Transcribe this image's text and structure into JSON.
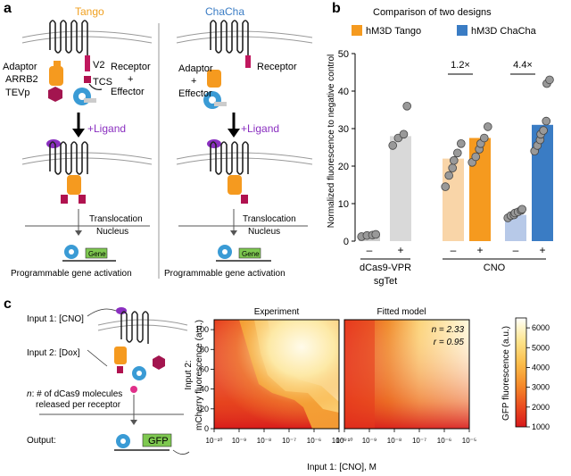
{
  "panels": {
    "a": {
      "letter": "a",
      "left": {
        "title": "Tango",
        "title_color": "#f0a020",
        "adaptor": "Adaptor",
        "arrb2": "ARRB2",
        "tevp": "TEVp",
        "v2": "V2",
        "tcs": "TCS",
        "receptor": "Receptor",
        "plus_sign": "+",
        "effector": "Effector",
        "ligand": "+Ligand",
        "translocation": "Translocation",
        "nucleus": "Nucleus",
        "gene": "Gene",
        "activation": "Programmable gene activation"
      },
      "right": {
        "title": "ChaCha",
        "title_color": "#3a7cc4",
        "adaptor": "Adaptor",
        "plus_sign": "+",
        "effector": "Effector",
        "receptor": "Receptor",
        "ligand": "+Ligand",
        "translocation": "Translocation",
        "nucleus": "Nucleus",
        "gene": "Gene",
        "activation": "Programmable gene activation"
      },
      "ligand_color": "#8a2fc0"
    },
    "b": {
      "letter": "b",
      "legend_title": "Comparison of two designs",
      "legend": [
        {
          "label": "hM3D Tango",
          "color": "#f59a1f"
        },
        {
          "label": "hM3D ChaCha",
          "color": "#3a7cc4"
        }
      ],
      "fold_labels": [
        "1.2×",
        "4.4×"
      ],
      "group_labels": [
        "dCas9-VPR",
        "sgTet",
        "CNO"
      ],
      "minus": "–",
      "plus": "+"
    },
    "c": {
      "letter": "c",
      "input1": "Input 1: [CNO]",
      "input2": "Input 2: [Dox]",
      "n_note_italic": "n",
      "n_note_rest": ": # of dCas9 molecules",
      "n_note_line2": "released per receptor",
      "output": "Output:",
      "gfp": "GFP",
      "heatmap_titles": [
        "Experiment",
        "Fitted model"
      ],
      "fit_n": "n = 2.33",
      "fit_r": "r = 0.95",
      "ylabel_line1": "Input 2:",
      "ylabel_line2": "mCherry fluorescence (a.u.)",
      "xlabel": "Input 1: [CNO], M",
      "colorbar_label": "GFP fluorescence (a.u.)"
    }
  },
  "chart_data": [
    {
      "type": "bar",
      "panel": "b",
      "ylabel": "Normalized fluorescence to negative control",
      "ylim": [
        0,
        50
      ],
      "yticks": [
        0,
        10,
        20,
        30,
        40,
        50
      ],
      "bars": [
        {
          "group": "dCas9-VPR sgTet",
          "treatment": "–",
          "value": 1.5,
          "color": "#cccccc",
          "points": [
            1.2,
            1.5,
            1.6,
            1.8
          ]
        },
        {
          "group": "dCas9-VPR sgTet",
          "treatment": "+",
          "value": 28,
          "color": "#d9d9d9",
          "points": [
            25.5,
            27.5,
            28.5,
            36
          ]
        },
        {
          "group": "CNO",
          "treatment": "–",
          "value": 22,
          "color": "#f9d5a8",
          "points": [
            14.5,
            17.5,
            19.5,
            21.5,
            23.5,
            26
          ]
        },
        {
          "group": "CNO",
          "treatment": "+",
          "value": 27.5,
          "color": "#f59a1f",
          "points": [
            21,
            22.5,
            24.5,
            26,
            27.5,
            30.5
          ]
        },
        {
          "group": "CNO",
          "treatment": "–",
          "value": 7,
          "color": "#b7c9e8",
          "points": [
            6.2,
            6.8,
            7.0,
            7.5,
            7.8,
            8.2,
            8.5
          ]
        },
        {
          "group": "CNO",
          "treatment": "+",
          "value": 31,
          "color": "#3a7cc4",
          "points": [
            24,
            25.5,
            27,
            28.5,
            29.5,
            32,
            42,
            43
          ]
        }
      ]
    },
    {
      "type": "heatmap",
      "panel": "c",
      "titles": [
        "Experiment",
        "Fitted model"
      ],
      "x_tick_labels": [
        "10⁻¹⁰",
        "10⁻⁹",
        "10⁻⁸",
        "10⁻⁷",
        "10⁻⁶",
        "10⁻⁵"
      ],
      "xlim_log10": [
        -10,
        -5
      ],
      "y_ticks": [
        0,
        20,
        40,
        60,
        80,
        100
      ],
      "ylim": [
        0,
        110
      ],
      "colorbar": {
        "ticks": [
          1000,
          2000,
          3000,
          4000,
          5000,
          6000
        ],
        "range": [
          1000,
          6500
        ],
        "colors": [
          "#d7191c",
          "#ea4a1f",
          "#f58a2a",
          "#fbbd4a",
          "#fde38a",
          "#fff6cf",
          "#ffffff"
        ]
      }
    }
  ]
}
